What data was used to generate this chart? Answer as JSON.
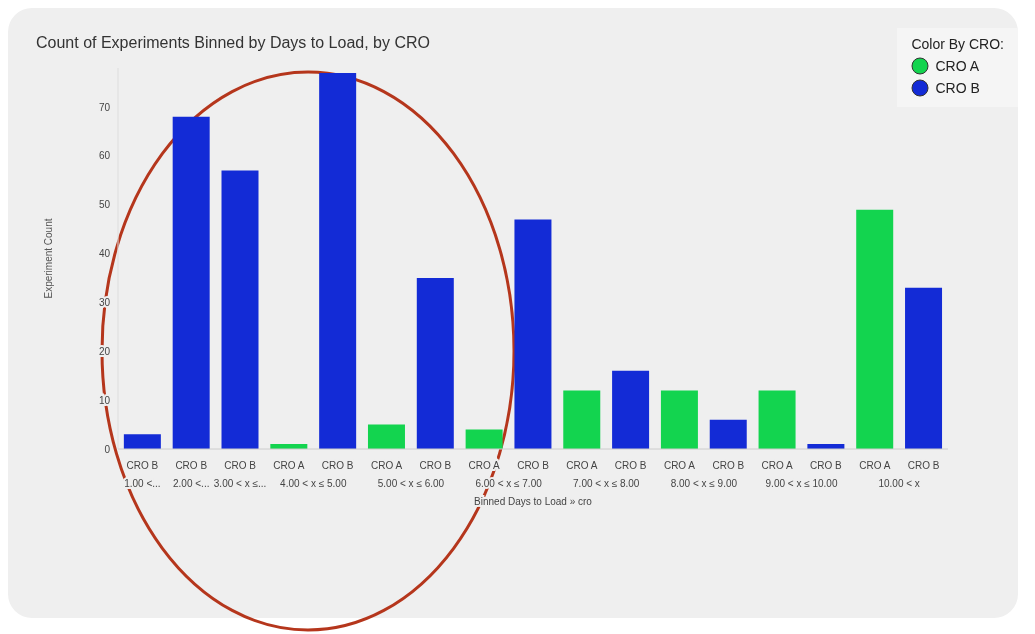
{
  "chart_data": {
    "type": "bar",
    "title": "Count of Experiments Binned by Days to Load, by CRO",
    "xlabel": "Binned Days to Load » cro",
    "ylabel": "Experiment Count",
    "legend_title": "Color By CRO:",
    "legend": "top right",
    "categories": [
      "1.00 <...",
      "2.00 <...",
      "3.00 < x ≤...",
      "4.00 < x ≤ 5.00",
      "5.00 < x ≤ 6.00",
      "6.00 < x ≤ 7.00",
      "7.00 < x ≤ 8.00",
      "8.00 < x ≤ 9.00",
      "9.00 < x ≤ 10.00",
      "10.00 < x"
    ],
    "series": [
      {
        "name": "CRO A",
        "color": "#13d44f",
        "values": [
          null,
          null,
          null,
          1,
          5,
          4,
          12,
          12,
          12,
          49
        ]
      },
      {
        "name": "CRO B",
        "color": "#132bd6",
        "values": [
          3,
          68,
          57,
          77,
          35,
          47,
          16,
          6,
          1,
          33
        ]
      }
    ],
    "ylim": [
      0,
      78
    ],
    "yticks": [
      0,
      10,
      20,
      30,
      40,
      50,
      60,
      70
    ],
    "grid": false
  }
}
